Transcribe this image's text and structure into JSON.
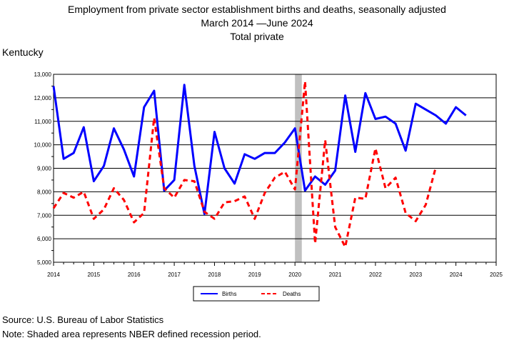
{
  "title": {
    "line1": "Employment from private sector establishment births and deaths, seasonally adjusted",
    "line2": "March 2014 —June 2024",
    "line3": "Total private"
  },
  "region_label": "Kentucky",
  "footer": {
    "source": "Source: U.S. Bureau of Labor Statistics",
    "note": "Note: Shaded area represents NBER defined recession period."
  },
  "chart_data": {
    "type": "line",
    "title": "Employment from private sector establishment births and deaths, seasonally adjusted",
    "xlabel": "",
    "ylabel": "",
    "xlim": [
      2014,
      2025
    ],
    "ylim": [
      5000,
      13000
    ],
    "x_ticks": [
      "2014",
      "2015",
      "2016",
      "2017",
      "2018",
      "2019",
      "2020",
      "2021",
      "2022",
      "2023",
      "2024",
      "2025"
    ],
    "y_ticks": [
      "5,000",
      "6,000",
      "7,000",
      "8,000",
      "9,000",
      "10,000",
      "11,000",
      "12,000",
      "13,000"
    ],
    "grid": true,
    "legend_position": "bottom-center",
    "recession_shading": [
      2020.0,
      2020.17
    ],
    "series": [
      {
        "name": "Births",
        "color": "#0000ff",
        "style": "solid",
        "x": [
          2014.0,
          2014.25,
          2014.5,
          2014.75,
          2015.0,
          2015.25,
          2015.5,
          2015.75,
          2016.0,
          2016.25,
          2016.5,
          2016.75,
          2017.0,
          2017.25,
          2017.5,
          2017.75,
          2018.0,
          2018.25,
          2018.5,
          2018.75,
          2019.0,
          2019.25,
          2019.5,
          2019.75,
          2020.0,
          2020.25,
          2020.5,
          2020.75,
          2021.0,
          2021.25,
          2021.5,
          2021.75,
          2022.0,
          2022.25,
          2022.5,
          2022.75,
          2023.0,
          2023.25,
          2023.5,
          2023.75,
          2024.0,
          2024.25
        ],
        "values": [
          12500,
          9400,
          9650,
          10750,
          8450,
          9100,
          10700,
          9800,
          8650,
          11600,
          12300,
          8050,
          8500,
          12550,
          9100,
          7050,
          10550,
          9000,
          8350,
          9600,
          9400,
          9650,
          9650,
          10100,
          10700,
          8050,
          8650,
          8300,
          8900,
          12100,
          9700,
          12200,
          11100,
          11200,
          10900,
          9750,
          11750,
          11500,
          11250,
          10900,
          11600,
          11250
        ]
      },
      {
        "name": "Deaths",
        "color": "#ff0000",
        "style": "dashed",
        "x": [
          2014.0,
          2014.25,
          2014.5,
          2014.75,
          2015.0,
          2015.25,
          2015.5,
          2015.75,
          2016.0,
          2016.25,
          2016.5,
          2016.75,
          2017.0,
          2017.25,
          2017.5,
          2017.75,
          2018.0,
          2018.25,
          2018.5,
          2018.75,
          2019.0,
          2019.25,
          2019.5,
          2019.75,
          2020.0,
          2020.25,
          2020.5,
          2020.75,
          2021.0,
          2021.25,
          2021.5,
          2021.75,
          2022.0,
          2022.25,
          2022.5,
          2022.75,
          2023.0,
          2023.25,
          2023.5
        ],
        "values": [
          7300,
          7950,
          7750,
          8000,
          6850,
          7250,
          8150,
          7650,
          6700,
          7100,
          11150,
          8150,
          7750,
          8500,
          8450,
          7150,
          6850,
          7550,
          7600,
          7800,
          6850,
          7950,
          8600,
          8850,
          8100,
          12700,
          5800,
          10200,
          6500,
          5650,
          7750,
          7700,
          9850,
          8150,
          8600,
          7100,
          6750,
          7450,
          9050
        ]
      }
    ]
  }
}
